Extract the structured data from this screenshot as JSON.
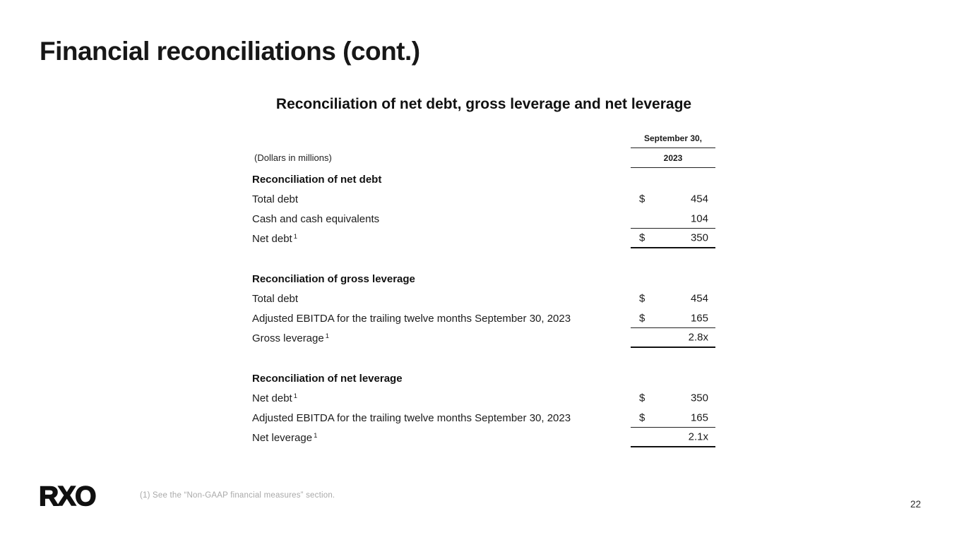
{
  "slide": {
    "title": "Financial reconciliations (cont.)",
    "logo_text": "RXO",
    "footnote": "(1) See the “Non-GAAP financial measures” section.",
    "page_number": "22"
  },
  "table": {
    "title": "Reconciliation of net debt, gross leverage and net leverage",
    "units_label": "(Dollars in millions)",
    "column_header": {
      "line1": "September 30,",
      "line2": "2023"
    },
    "sections": [
      {
        "heading": "Reconciliation of net debt",
        "rows": [
          {
            "label": "Total debt",
            "sup": "",
            "currency": "$",
            "value": "454"
          },
          {
            "label": "Cash and cash equivalents",
            "sup": "",
            "currency": "",
            "value": "104"
          },
          {
            "label": "Net debt",
            "sup": "1",
            "currency": "$",
            "value": "350"
          }
        ]
      },
      {
        "heading": "Reconciliation of gross leverage",
        "rows": [
          {
            "label": "Total debt",
            "sup": "",
            "currency": "$",
            "value": "454"
          },
          {
            "label": "Adjusted EBITDA for the trailing twelve months September 30, 2023",
            "sup": "",
            "currency": "$",
            "value": "165"
          },
          {
            "label": "Gross leverage",
            "sup": "1",
            "currency": "",
            "value": "2.8x"
          }
        ]
      },
      {
        "heading": "Reconciliation of net leverage",
        "rows": [
          {
            "label": "Net debt",
            "sup": "1",
            "currency": "$",
            "value": "350"
          },
          {
            "label": "Adjusted EBITDA for the trailing twelve months September 30, 2023",
            "sup": "",
            "currency": "$",
            "value": "165"
          },
          {
            "label": "Net leverage",
            "sup": "1",
            "currency": "",
            "value": "2.1x"
          }
        ]
      }
    ]
  },
  "colors": {
    "text": "#1a1a1a",
    "rule": "#222222",
    "muted_footnote": "#a9a9a9",
    "background": "#ffffff"
  }
}
